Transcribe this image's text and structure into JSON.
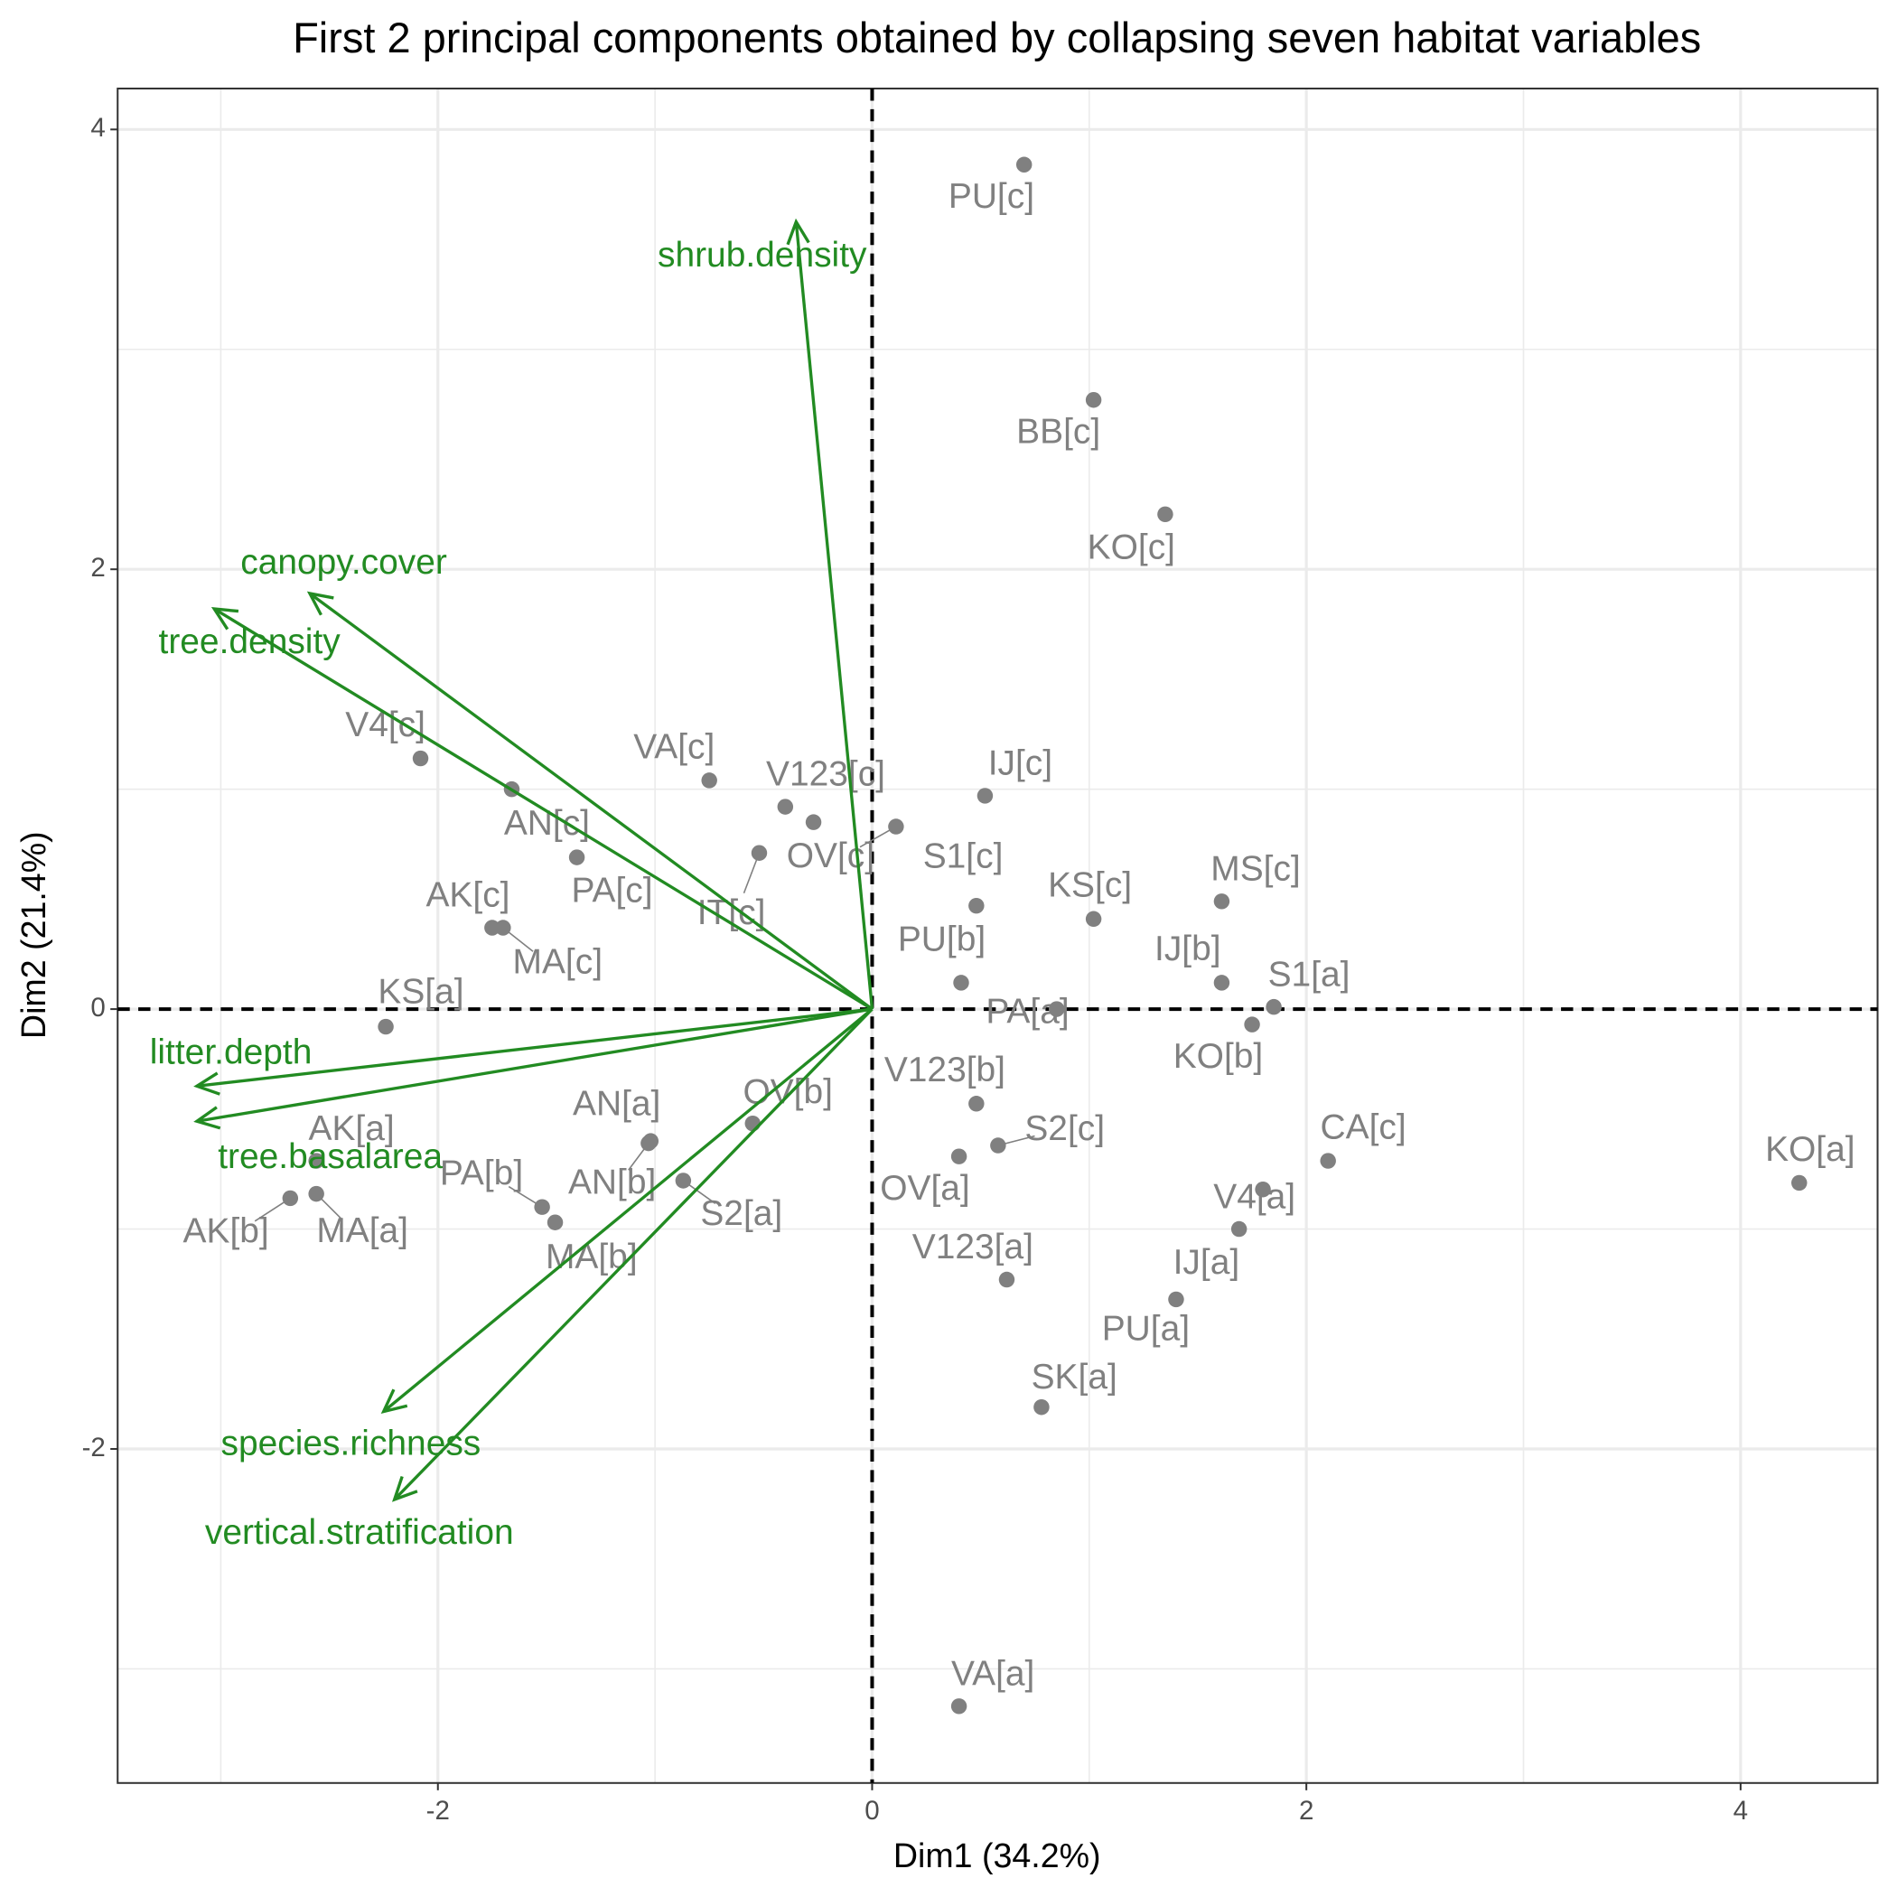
{
  "chart_data": {
    "type": "biplot",
    "title": "First 2 principal components obtained by collapsing seven habitat variables",
    "x_label": "Dim1 (34.2%)",
    "y_label": "Dim2 (21.4%)",
    "xlim": [
      -3.475,
      4.631
    ],
    "ylim": [
      -3.519,
      4.186
    ],
    "xticks": [
      -2,
      0,
      2,
      4
    ],
    "yticks": [
      -2,
      0,
      2,
      4
    ],
    "grid": true,
    "origin_lines": true,
    "points": {
      "color": "#808080",
      "labels": [
        "PU[c]",
        "BB[c]",
        "KO[c]",
        "V4[c]",
        "AN[c]",
        "VA[c]",
        null,
        "V123[c]",
        "OV[c]",
        "IT[c]",
        "S1[c]",
        "IJ[c]",
        "PA[c]",
        "AK[c]",
        "MA[c]",
        "KS[a]",
        "PU[b]",
        "KS[c]",
        "MS[c]",
        "IJ[b]",
        "S1[a]",
        "PA[a]",
        "KO[b]",
        "V123[b]",
        "S2[c]",
        "OV[a]",
        "CA[c]",
        "KO[a]",
        "V4[a]",
        "IJ[a]",
        "PU[a]",
        "V123[a]",
        "SK[a]",
        "VA[a]",
        "AN[a]",
        "AN[b]",
        "OV[b]",
        "PA[b]",
        "MA[b]",
        "S2[a]",
        "AK[a]",
        "AK[b]",
        "MA[a]"
      ],
      "x": [
        0.7,
        1.02,
        1.35,
        -2.08,
        -1.66,
        -0.75,
        -0.4,
        -0.27,
        0.11,
        -0.52,
        0.48,
        0.52,
        -1.36,
        -1.75,
        -1.7,
        -2.24,
        0.41,
        1.02,
        1.61,
        1.61,
        1.85,
        0.85,
        1.75,
        0.48,
        0.58,
        0.4,
        2.1,
        4.27,
        1.8,
        1.69,
        1.4,
        0.62,
        0.78,
        0.4,
        -1.02,
        -1.03,
        -0.55,
        -1.52,
        -1.46,
        -0.87,
        -2.56,
        -2.68,
        -2.56
      ],
      "y": [
        3.84,
        2.77,
        2.25,
        1.14,
        1.0,
        1.04,
        0.92,
        0.85,
        0.83,
        0.71,
        0.47,
        0.97,
        0.69,
        0.37,
        0.37,
        -0.08,
        0.12,
        0.41,
        0.49,
        0.12,
        0.01,
        0.0,
        -0.07,
        -0.43,
        -0.62,
        -0.67,
        -0.69,
        -0.79,
        -0.82,
        -1.0,
        -1.32,
        -1.23,
        -1.81,
        -3.17,
        -0.6,
        -0.61,
        -0.52,
        -0.9,
        -0.97,
        -0.78,
        -0.69,
        -0.86,
        -0.84
      ]
    },
    "vectors": {
      "color": "#228b22",
      "labels": [
        "shrub.density",
        "canopy.cover",
        "tree.density",
        "litter.depth",
        "tree.basalarea",
        "species.richness",
        "vertical.stratification"
      ],
      "x": [
        -0.35,
        -2.59,
        -3.03,
        -3.11,
        -3.11,
        -2.25,
        -2.2
      ],
      "y": [
        3.58,
        1.89,
        1.82,
        -0.35,
        -0.51,
        -1.83,
        -2.23
      ]
    }
  }
}
